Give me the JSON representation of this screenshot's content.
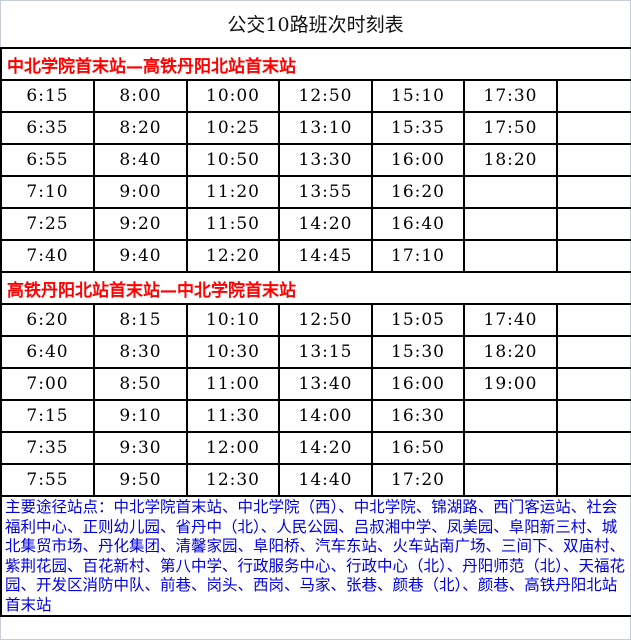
{
  "title": "公交10路班次时刻表",
  "directions": [
    {
      "label": "中北学院首末站—高铁丹阳北站首末站",
      "rows": [
        [
          "6:15",
          "8:00",
          "10:00",
          "12:50",
          "15:10",
          "17:30",
          ""
        ],
        [
          "6:35",
          "8:20",
          "10:25",
          "13:10",
          "15:35",
          "17:50",
          ""
        ],
        [
          "6:55",
          "8:40",
          "10:50",
          "13:30",
          "16:00",
          "18:20",
          ""
        ],
        [
          "7:10",
          "9:00",
          "11:20",
          "13:55",
          "16:20",
          "",
          ""
        ],
        [
          "7:25",
          "9:20",
          "11:50",
          "14:20",
          "16:40",
          "",
          ""
        ],
        [
          "7:40",
          "9:40",
          "12:20",
          "14:45",
          "17:10",
          "",
          ""
        ]
      ]
    },
    {
      "label": "高铁丹阳北站首末站—中北学院首末站",
      "rows": [
        [
          "6:20",
          "8:15",
          "10:10",
          "12:50",
          "15:05",
          "17:40",
          ""
        ],
        [
          "6:40",
          "8:30",
          "10:30",
          "13:15",
          "15:30",
          "18:20",
          ""
        ],
        [
          "7:00",
          "8:50",
          "11:00",
          "13:40",
          "16:00",
          "19:00",
          ""
        ],
        [
          "7:15",
          "9:10",
          "11:30",
          "14:00",
          "16:30",
          "",
          ""
        ],
        [
          "7:35",
          "9:30",
          "12:00",
          "14:20",
          "16:50",
          "",
          ""
        ],
        [
          "7:55",
          "9:50",
          "12:30",
          "14:40",
          "17:20",
          "",
          ""
        ]
      ]
    }
  ],
  "stops_text": "主要途径站点：中北学院首末站、中北学院（西）、中北学院、锦湖路、西门客运站、社会福利中心、正则幼儿园、省丹中（北）、人民公园、吕叔湘中学、凤美园、阜阳新三村、城北集贸市场、丹化集团、清馨家园、阜阳桥、汽车东站、火车站南广场、三间下、双庙村、紫荆花园、百花新村、第八中学、行政服务中心、行政中心（北）、丹阳师范（北）、天福花园、开发区消防中队、前巷、岗头、西岗、马家、张巷、颜巷（北）、颜巷、高铁丹阳北站首末站",
  "colors": {
    "direction_label": "#ff0000",
    "stops_text": "#0000e0"
  }
}
